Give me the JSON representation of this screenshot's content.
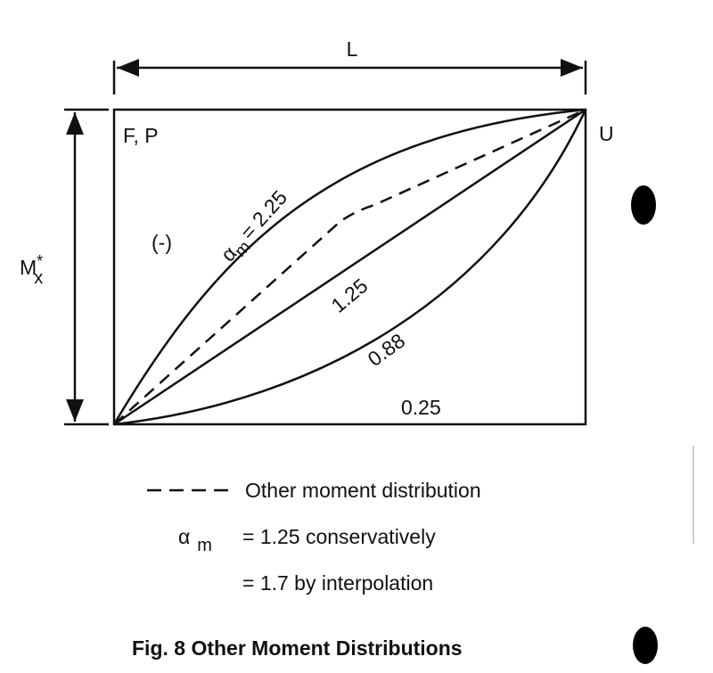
{
  "dimensions": {
    "length": "L",
    "moment": {
      "symbol": "M",
      "superscript": "*",
      "subscript": "x"
    }
  },
  "corners": {
    "top_left": "F, P",
    "top_right": "U"
  },
  "sign": "(-)",
  "curves": [
    {
      "symbol": "α",
      "subscript": "m",
      "label": "= 2.25"
    },
    {
      "label": "1.25"
    },
    {
      "label": "0.88"
    },
    {
      "label": "0.25"
    }
  ],
  "legend": {
    "dashed": "Other moment distribution",
    "symbol": "α",
    "subscript": "m",
    "lines": [
      "= 1.25 conservatively",
      "= 1.7 by interpolation"
    ]
  },
  "caption": "Fig. 8  Other Moment Distributions"
}
